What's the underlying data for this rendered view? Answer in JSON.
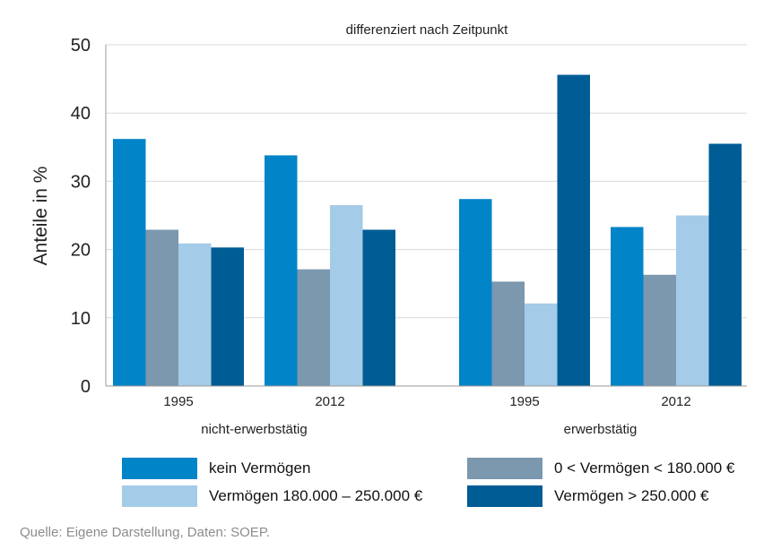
{
  "chart_data": {
    "type": "bar",
    "title": "differenziert nach Zeitpunkt",
    "ylabel": "Anteile in %",
    "ylim": [
      0,
      50
    ],
    "yticks": [
      0,
      10,
      20,
      30,
      40,
      50
    ],
    "grid": true,
    "groups": [
      {
        "label": "nicht-erwerbstätig",
        "categories": [
          "1995",
          "2012"
        ]
      },
      {
        "label": "erwerbstätig",
        "categories": [
          "1995",
          "2012"
        ]
      }
    ],
    "series": [
      {
        "name": "kein Vermögen",
        "color": "#0284c8",
        "values": [
          36.2,
          33.8,
          27.4,
          23.3
        ]
      },
      {
        "name": "0 < Vermögen < 180.000 €",
        "color": "#7b98ae",
        "values": [
          22.9,
          17.1,
          15.3,
          16.3
        ]
      },
      {
        "name": "Vermögen 180.000 – 250.000 €",
        "color": "#a4cbe8",
        "values": [
          20.9,
          26.5,
          12.1,
          25.0
        ]
      },
      {
        "name": "Vermögen > 250.000 €",
        "color": "#005c95",
        "values": [
          20.3,
          22.9,
          45.6,
          35.5
        ]
      }
    ]
  },
  "source_text": "Quelle: Eigene Darstellung, Daten: SOEP."
}
